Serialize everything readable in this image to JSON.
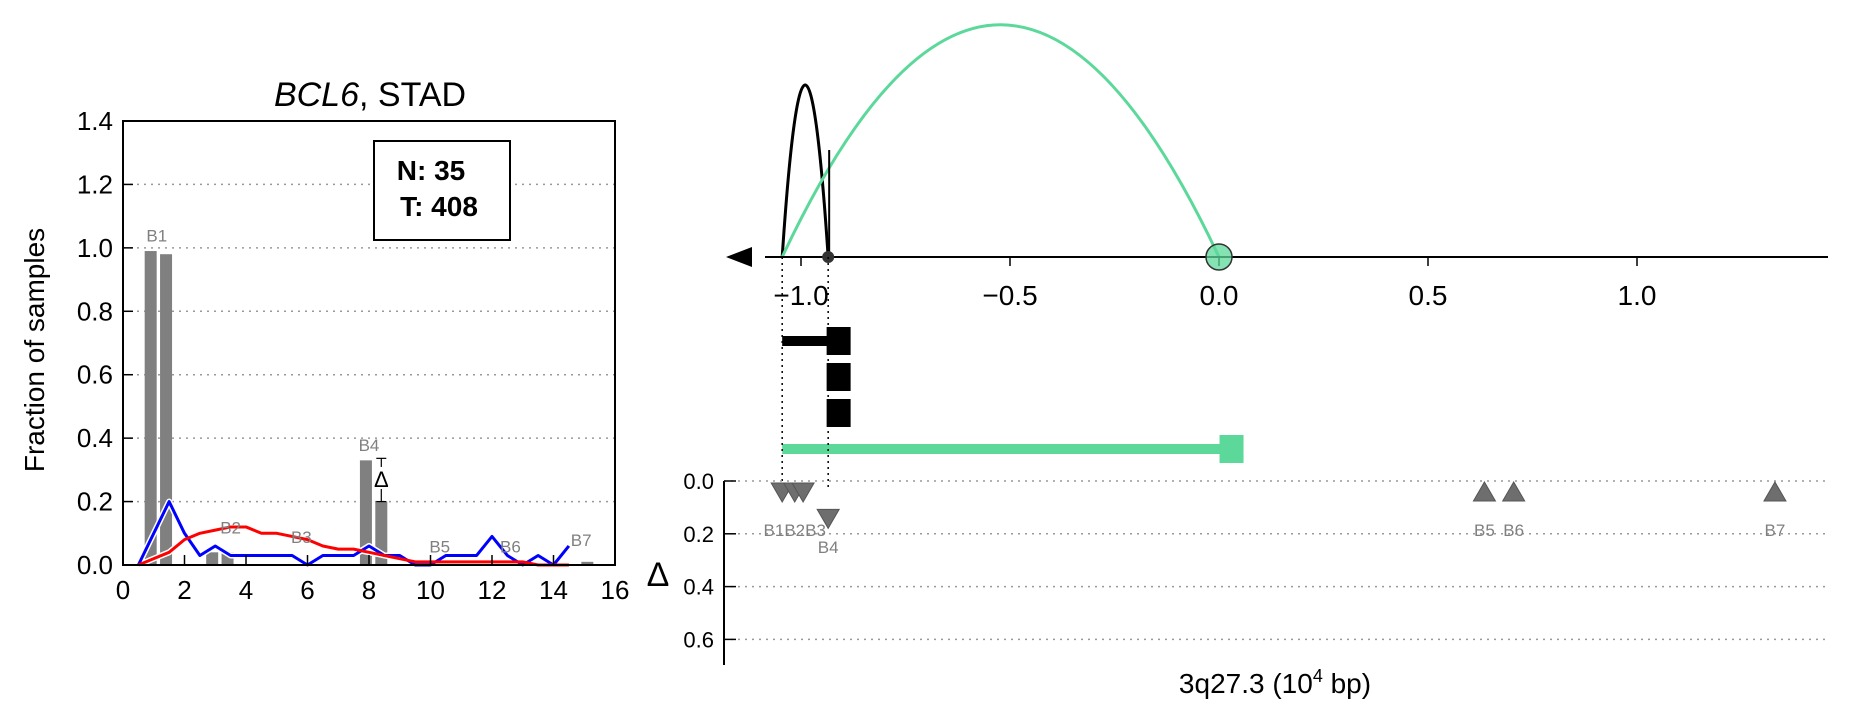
{
  "chart_data": [
    {
      "type": "bar",
      "title_gene": "BCL6",
      "title_rest": ", STAD",
      "ylabel": "Fraction of samples",
      "xlim": [
        0,
        16
      ],
      "ylim": [
        0,
        1.4
      ],
      "x_ticks": [
        "0",
        "2",
        "4",
        "6",
        "8",
        "10",
        "12",
        "14",
        "16"
      ],
      "y_ticks": [
        "0.0",
        "0.2",
        "0.4",
        "0.6",
        "0.8",
        "1.0",
        "1.2",
        "1.4"
      ],
      "grid": "horizontal dotted",
      "legend_box": {
        "n_label": "N: 35",
        "t_label": "T: 408"
      },
      "bars": [
        {
          "x": 0.9,
          "value": 0.99
        },
        {
          "x": 1.4,
          "value": 0.98
        },
        {
          "x": 2.9,
          "value": 0.04
        },
        {
          "x": 3.4,
          "value": 0.04
        },
        {
          "x": 7.9,
          "value": 0.33
        },
        {
          "x": 8.4,
          "value": 0.2
        },
        {
          "x": 15.1,
          "value": 0.01
        }
      ],
      "bar_labels": [
        {
          "text": "B1",
          "x": 1.1,
          "y": 1.02
        },
        {
          "text": "B2",
          "x": 3.5,
          "y": 0.1
        },
        {
          "text": "B3",
          "x": 5.8,
          "y": 0.07
        },
        {
          "text": "B4",
          "x": 8.0,
          "y": 0.36
        },
        {
          "text": "B5",
          "x": 10.3,
          "y": 0.04
        },
        {
          "text": "B6",
          "x": 12.6,
          "y": 0.04
        },
        {
          "text": "B7",
          "x": 14.9,
          "y": 0.06
        }
      ],
      "delta_annotation": {
        "symbol": "Δ",
        "x": 8.4,
        "y_low": 0.2,
        "y_high": 0.33
      },
      "series": [
        {
          "color": "#0000ff",
          "x": [
            0.5,
            1,
            1.5,
            2,
            2.5,
            3,
            3.5,
            4,
            4.5,
            5,
            5.5,
            6,
            6.5,
            7,
            7.5,
            8,
            8.5,
            9,
            9.5,
            10,
            10.5,
            11,
            11.5,
            12,
            12.5,
            13,
            13.5,
            14,
            14.5
          ],
          "y": [
            0,
            0.1,
            0.2,
            0.1,
            0.03,
            0.06,
            0.03,
            0.03,
            0.03,
            0.03,
            0.03,
            0,
            0.03,
            0.03,
            0.03,
            0.06,
            0.03,
            0.03,
            0,
            0,
            0.03,
            0.03,
            0.03,
            0.09,
            0.03,
            0,
            0.03,
            0,
            0.06
          ]
        },
        {
          "color": "#ff0000",
          "x": [
            0.5,
            1,
            1.5,
            2,
            2.5,
            3,
            3.5,
            4,
            4.5,
            5,
            5.5,
            6,
            6.5,
            7,
            7.5,
            8,
            8.5,
            9,
            9.5,
            10,
            10.5,
            11,
            11.5,
            12,
            12.5,
            13,
            13.5,
            14,
            14.5
          ],
          "y": [
            0,
            0.02,
            0.04,
            0.08,
            0.1,
            0.11,
            0.12,
            0.12,
            0.1,
            0.1,
            0.09,
            0.08,
            0.06,
            0.05,
            0.05,
            0.04,
            0.03,
            0.02,
            0.01,
            0.01,
            0.01,
            0.01,
            0.01,
            0.01,
            0.01,
            0.01,
            0,
            0,
            0
          ]
        }
      ]
    },
    {
      "type": "line",
      "x_ticks": [
        "−1.0",
        "−0.5",
        "0.0",
        "0.5",
        "1.0"
      ],
      "x_tick_values": [
        -1.0,
        -0.5,
        0.0,
        0.5,
        1.0
      ],
      "xlim": [
        -1.0,
        1.45
      ],
      "arcs": [
        {
          "color": "#000000",
          "x_start": -1.045,
          "x_end": -0.935,
          "peak": 1.0
        },
        {
          "color": "#5bd89a",
          "x_start": -1.045,
          "x_end": 0.0,
          "peak": 1.35
        }
      ],
      "origin_marker": {
        "x": 0.0,
        "color": "#5bd89a"
      },
      "node_marker": {
        "x": -0.935,
        "color": "#333333"
      },
      "direction_arrow": "left",
      "segments": [
        {
          "color": "#000000",
          "x_start": -1.045,
          "x_end": -0.91,
          "thickness": "thick"
        },
        {
          "color": "#5bd89a",
          "x_start": -1.045,
          "x_end": 0.03,
          "thickness": "thick"
        }
      ],
      "stacked_markers": {
        "x": -0.91,
        "count": 3,
        "color": "#000000"
      }
    },
    {
      "type": "scatter",
      "xlabel_main": "3q27.3 (10",
      "xlabel_sup": "4",
      "xlabel_end": " bp)",
      "ylabel": "Δ",
      "y_ticks": [
        "0.0",
        "0.2",
        "0.4",
        "0.6"
      ],
      "ylim": [
        0,
        0.7
      ],
      "grid": "horizontal dotted",
      "points": [
        {
          "label": "B1",
          "x": -1.045,
          "delta": 0.0,
          "direction": "down"
        },
        {
          "label": "B2",
          "x": -1.015,
          "delta": 0.0,
          "direction": "down"
        },
        {
          "label": "B3",
          "x": -0.995,
          "delta": 0.0,
          "direction": "down"
        },
        {
          "label": "B4",
          "x": -0.935,
          "delta": 0.1,
          "direction": "down"
        },
        {
          "label": "B5",
          "x": 0.635,
          "delta": 0.0,
          "direction": "up"
        },
        {
          "label": "B6",
          "x": 0.705,
          "delta": 0.0,
          "direction": "up"
        },
        {
          "label": "B7",
          "x": 1.33,
          "delta": 0.0,
          "direction": "up"
        }
      ],
      "point_label_text": [
        "B1B2B3",
        "B4",
        "B5",
        "B6",
        "B7"
      ]
    }
  ]
}
